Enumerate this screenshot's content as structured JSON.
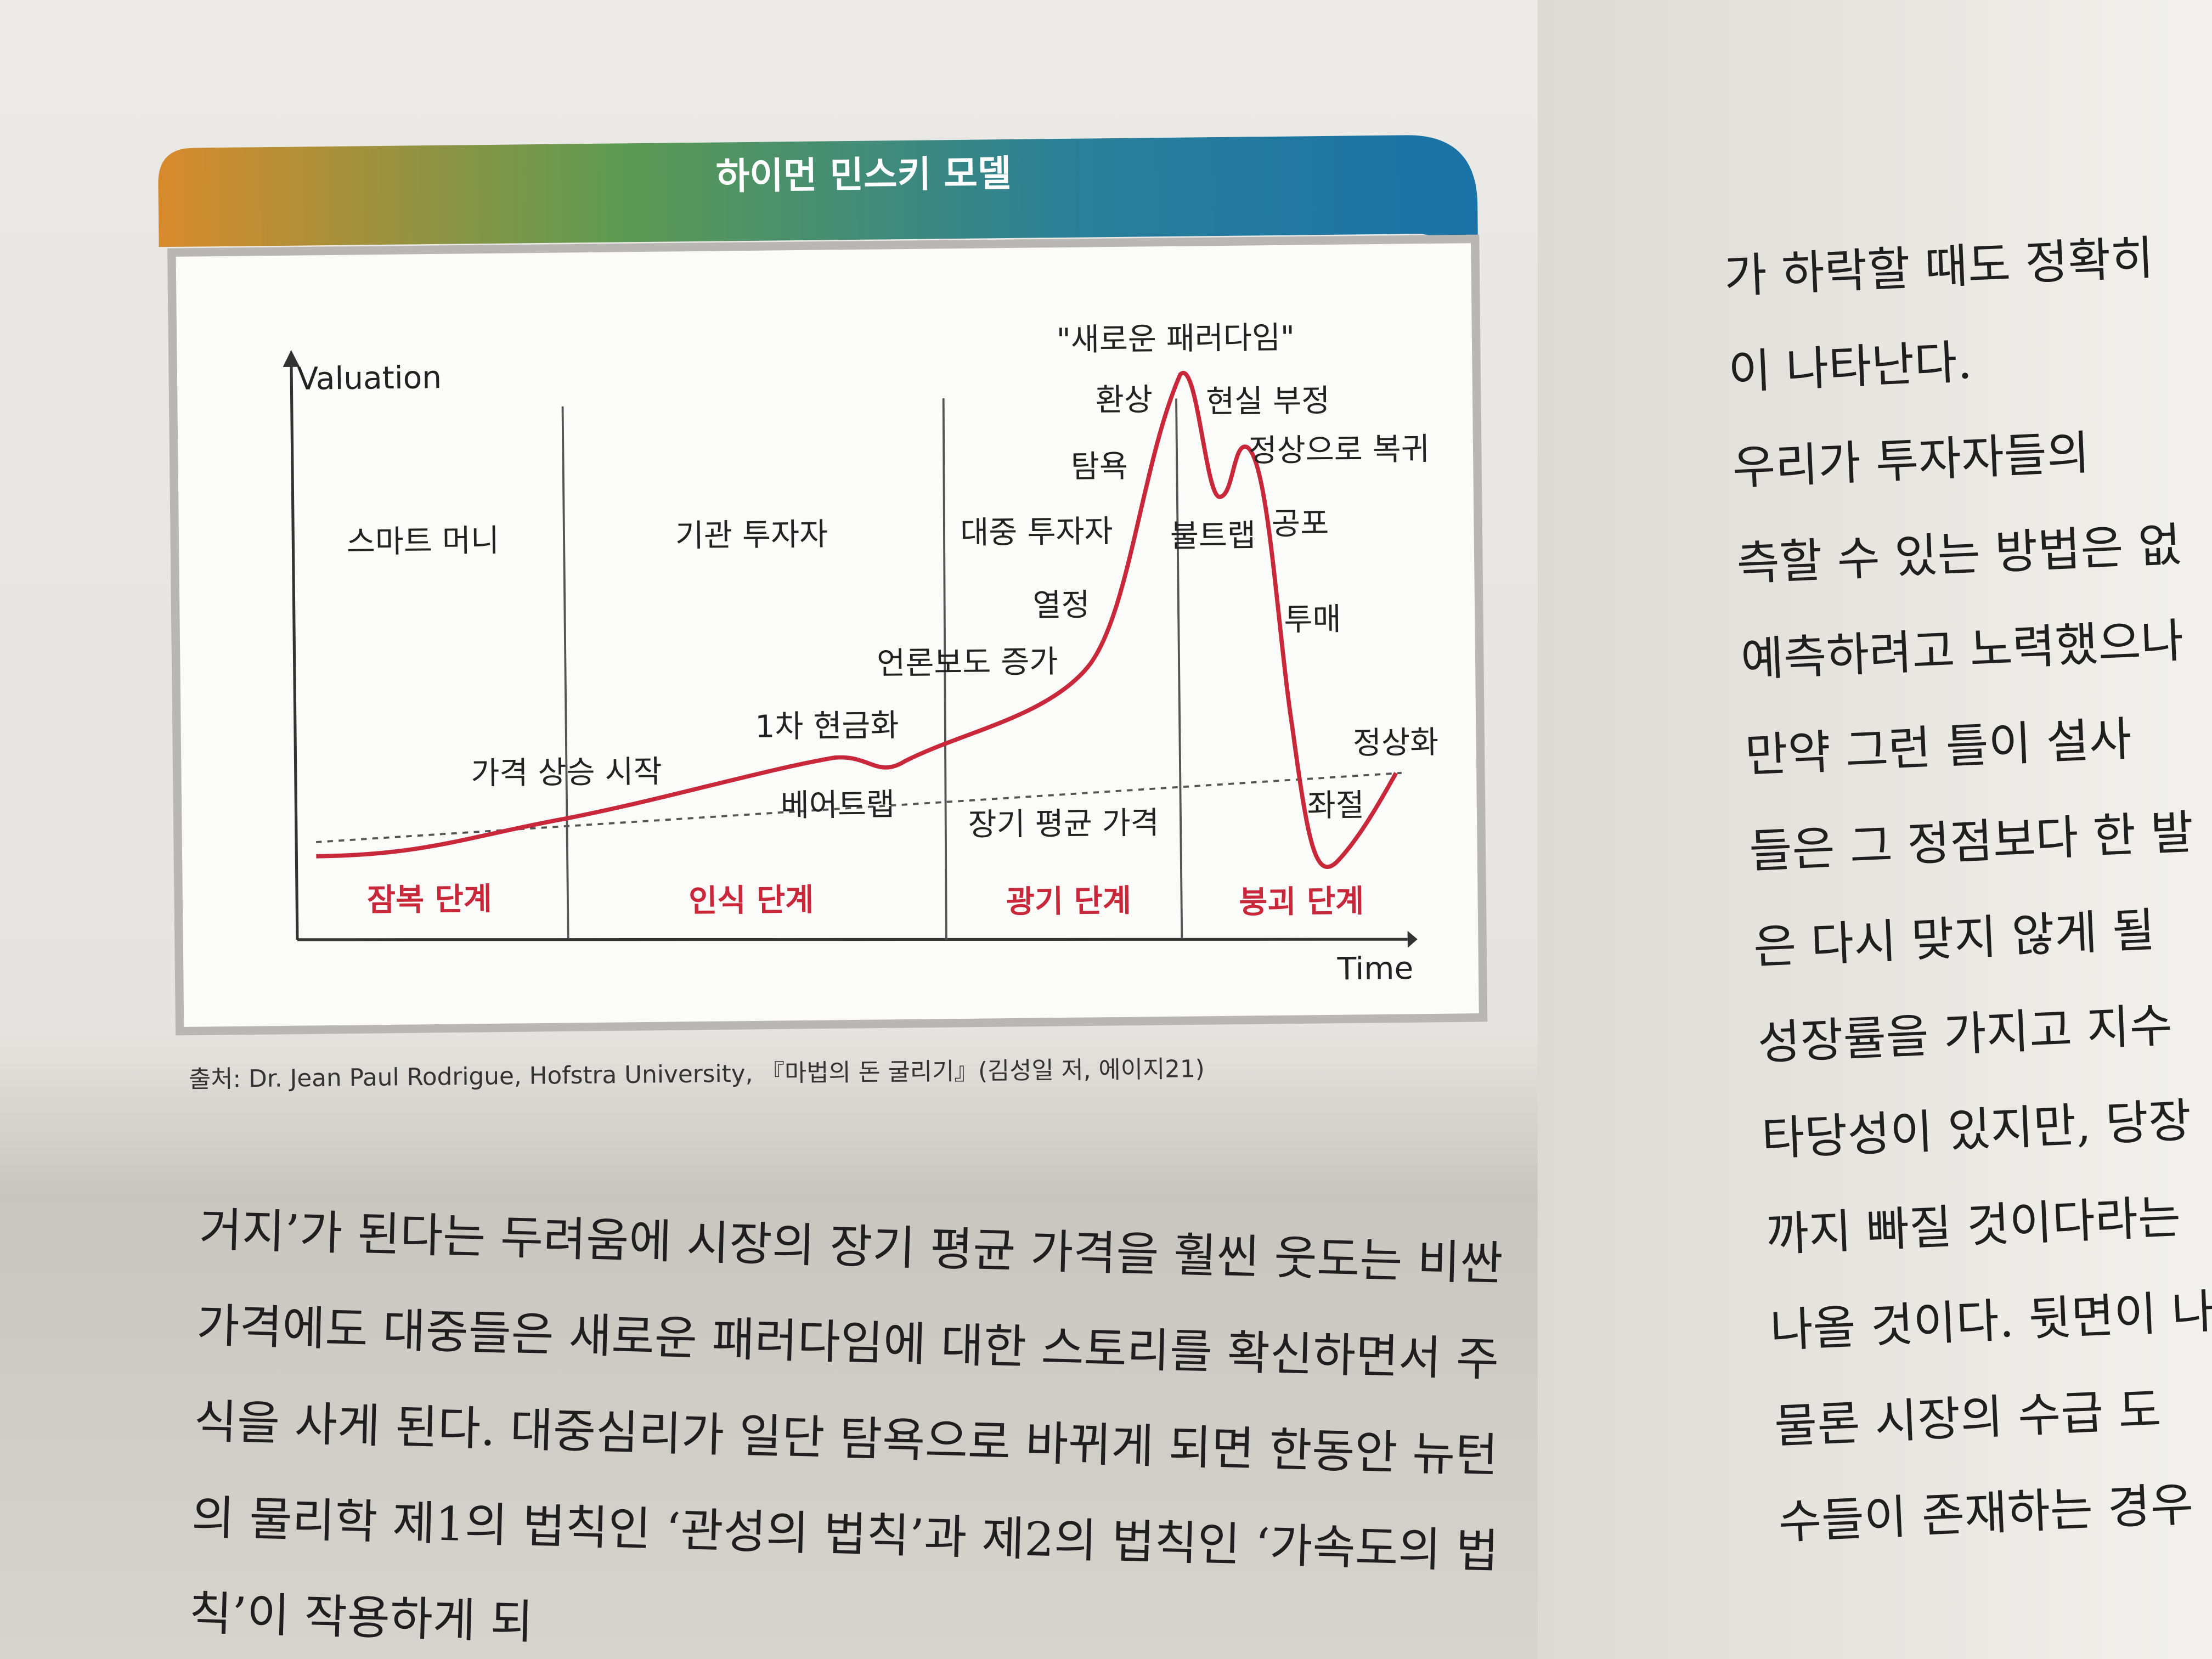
{
  "figure": {
    "title": "하이먼 민스키 모델",
    "y_axis": "Valuation",
    "x_axis": "Time",
    "players": [
      "스마트 머니",
      "기관 투자자",
      "대중 투자자"
    ],
    "phases": [
      "잠복 단계",
      "인식 단계",
      "광기 단계",
      "붕괴 단계"
    ],
    "annotations": [
      "\"새로운 패러다임\"",
      "환상",
      "현실 부정",
      "정상으로 복귀",
      "탐욕",
      "불트랩",
      "공포",
      "열정",
      "투매",
      "언론보도 증가",
      "1차 현금화",
      "가격 상승 시작",
      "베어트랩",
      "장기 평균 가격",
      "정상화",
      "좌절"
    ],
    "source": "출처: Dr. Jean Paul Rodrigue, Hofstra University, 『마법의 돈 굴리기』(김성일 저, 에이지21)"
  },
  "left_text": [
    "거지’가 된다는 두려움에 시장의 장기 평균 가격을 훨씬 웃도는 비싼",
    "가격에도 대중들은 새로운 패러다임에 대한 스토리를 확신하면서 주",
    "식을 사게 된다. 대중심리가 일단 탐욕으로 바뀌게 되면 한동안 뉴턴",
    "의 물리학 제1의 법칙인 ‘관성의 법칙’과 제2의 법칙인 ‘가속도의 법",
    "칙’이 작용하게 되"
  ],
  "right_text": [
    "가 하락할 때도 정확히",
    "이 나타난다.",
    "우리가 투자자들의",
    "측할 수 있는 방법은 없",
    "예측하려고 노력했으나",
    "만약 그런 틀이 설사",
    "들은 그 정점보다 한 발",
    "은 다시 맞지 않게 될",
    "성장률을 가지고 지수",
    "타당성이 있지만, 당장",
    "까지 빠질 것이다라는",
    "나올 것이다. 뒷면이 나",
    "물론 시장의 수급 도",
    "수들이 존재하는 경우"
  ]
}
